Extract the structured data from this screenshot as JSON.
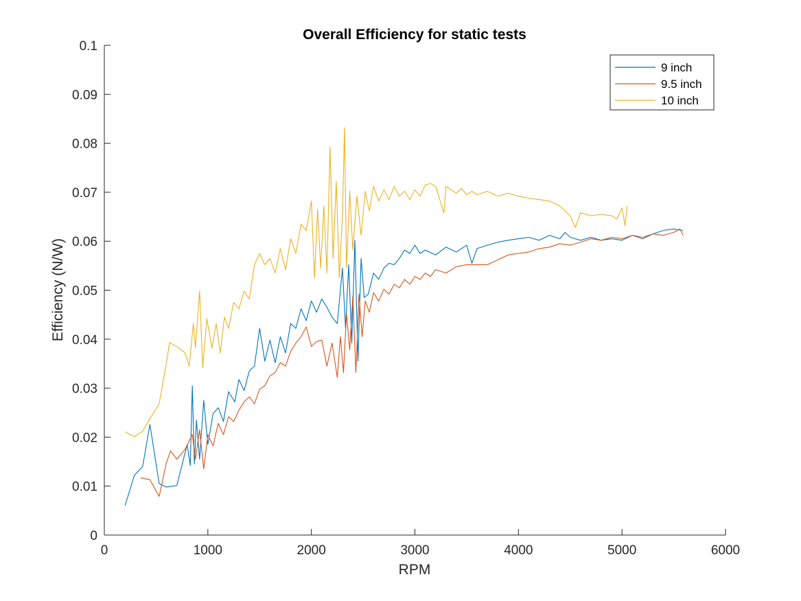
{
  "chart_data": {
    "type": "line",
    "title": "Overall Efficiency for static tests",
    "xlabel": "RPM",
    "ylabel": "Efficiency (N/W)",
    "xlim": [
      0,
      6000
    ],
    "ylim": [
      0,
      0.1
    ],
    "x_ticks": [
      "0",
      "1000",
      "2000",
      "3000",
      "4000",
      "5000",
      "6000"
    ],
    "y_ticks": [
      "0",
      "0.01",
      "0.02",
      "0.03",
      "0.04",
      "0.05",
      "0.06",
      "0.07",
      "0.08",
      "0.09",
      "0.1"
    ],
    "grid": false,
    "legend_position": "top-right",
    "series": [
      {
        "name": "9 inch",
        "color": "#0072BD",
        "points": [
          [
            200,
            0.006
          ],
          [
            290,
            0.0122
          ],
          [
            370,
            0.014
          ],
          [
            440,
            0.0226
          ],
          [
            530,
            0.0105
          ],
          [
            600,
            0.0098
          ],
          [
            700,
            0.0101
          ],
          [
            800,
            0.0185
          ],
          [
            830,
            0.0142
          ],
          [
            850,
            0.0305
          ],
          [
            870,
            0.0145
          ],
          [
            890,
            0.0235
          ],
          [
            920,
            0.0155
          ],
          [
            960,
            0.0275
          ],
          [
            1000,
            0.0185
          ],
          [
            1050,
            0.0248
          ],
          [
            1100,
            0.026
          ],
          [
            1150,
            0.0232
          ],
          [
            1200,
            0.0293
          ],
          [
            1260,
            0.0272
          ],
          [
            1300,
            0.0318
          ],
          [
            1350,
            0.0295
          ],
          [
            1400,
            0.0335
          ],
          [
            1450,
            0.0345
          ],
          [
            1500,
            0.0422
          ],
          [
            1550,
            0.0355
          ],
          [
            1600,
            0.0398
          ],
          [
            1650,
            0.0352
          ],
          [
            1700,
            0.0405
          ],
          [
            1750,
            0.0372
          ],
          [
            1800,
            0.0432
          ],
          [
            1850,
            0.0422
          ],
          [
            1900,
            0.0462
          ],
          [
            1950,
            0.0438
          ],
          [
            2000,
            0.0478
          ],
          [
            2050,
            0.0455
          ],
          [
            2100,
            0.0482
          ],
          [
            2150,
            0.0465
          ],
          [
            2200,
            0.0445
          ],
          [
            2250,
            0.0432
          ],
          [
            2300,
            0.0545
          ],
          [
            2330,
            0.0422
          ],
          [
            2360,
            0.0552
          ],
          [
            2390,
            0.0392
          ],
          [
            2420,
            0.0602
          ],
          [
            2450,
            0.0355
          ],
          [
            2480,
            0.0565
          ],
          [
            2510,
            0.0485
          ],
          [
            2550,
            0.0492
          ],
          [
            2600,
            0.0535
          ],
          [
            2650,
            0.0522
          ],
          [
            2700,
            0.0545
          ],
          [
            2750,
            0.0555
          ],
          [
            2800,
            0.0552
          ],
          [
            2850,
            0.0565
          ],
          [
            2900,
            0.0582
          ],
          [
            2950,
            0.0575
          ],
          [
            3000,
            0.0592
          ],
          [
            3050,
            0.0575
          ],
          [
            3100,
            0.0582
          ],
          [
            3200,
            0.0572
          ],
          [
            3300,
            0.0588
          ],
          [
            3400,
            0.0578
          ],
          [
            3500,
            0.0592
          ],
          [
            3550,
            0.0555
          ],
          [
            3600,
            0.0585
          ],
          [
            3700,
            0.0592
          ],
          [
            3800,
            0.0598
          ],
          [
            3900,
            0.0602
          ],
          [
            4000,
            0.0605
          ],
          [
            4100,
            0.0608
          ],
          [
            4200,
            0.0602
          ],
          [
            4300,
            0.0612
          ],
          [
            4400,
            0.0605
          ],
          [
            4450,
            0.0618
          ],
          [
            4500,
            0.0608
          ],
          [
            4600,
            0.0602
          ],
          [
            4700,
            0.0608
          ],
          [
            4800,
            0.0602
          ],
          [
            4900,
            0.0605
          ],
          [
            5000,
            0.0602
          ],
          [
            5100,
            0.0612
          ],
          [
            5200,
            0.0605
          ],
          [
            5300,
            0.0615
          ],
          [
            5400,
            0.0622
          ],
          [
            5500,
            0.0625
          ],
          [
            5590,
            0.0622
          ]
        ]
      },
      {
        "name": "9.5 inch",
        "color": "#D95319",
        "points": [
          [
            350,
            0.0117
          ],
          [
            440,
            0.0113
          ],
          [
            530,
            0.0079
          ],
          [
            600,
            0.0148
          ],
          [
            640,
            0.0172
          ],
          [
            700,
            0.0155
          ],
          [
            780,
            0.0175
          ],
          [
            850,
            0.0205
          ],
          [
            880,
            0.0155
          ],
          [
            920,
            0.0215
          ],
          [
            960,
            0.0135
          ],
          [
            1000,
            0.0205
          ],
          [
            1050,
            0.0182
          ],
          [
            1100,
            0.0228
          ],
          [
            1150,
            0.0205
          ],
          [
            1200,
            0.0242
          ],
          [
            1250,
            0.0232
          ],
          [
            1300,
            0.0255
          ],
          [
            1350,
            0.0272
          ],
          [
            1400,
            0.0282
          ],
          [
            1450,
            0.0268
          ],
          [
            1500,
            0.0298
          ],
          [
            1550,
            0.0305
          ],
          [
            1600,
            0.0325
          ],
          [
            1650,
            0.0332
          ],
          [
            1700,
            0.0352
          ],
          [
            1750,
            0.0345
          ],
          [
            1800,
            0.0375
          ],
          [
            1850,
            0.0392
          ],
          [
            1900,
            0.0405
          ],
          [
            1950,
            0.0425
          ],
          [
            2000,
            0.0385
          ],
          [
            2050,
            0.0395
          ],
          [
            2100,
            0.0398
          ],
          [
            2150,
            0.0345
          ],
          [
            2200,
            0.0392
          ],
          [
            2250,
            0.0322
          ],
          [
            2280,
            0.0405
          ],
          [
            2310,
            0.0332
          ],
          [
            2340,
            0.0452
          ],
          [
            2370,
            0.0378
          ],
          [
            2400,
            0.0488
          ],
          [
            2430,
            0.0332
          ],
          [
            2460,
            0.0492
          ],
          [
            2490,
            0.0405
          ],
          [
            2520,
            0.0478
          ],
          [
            2560,
            0.0455
          ],
          [
            2600,
            0.0495
          ],
          [
            2650,
            0.0478
          ],
          [
            2700,
            0.0502
          ],
          [
            2750,
            0.0492
          ],
          [
            2800,
            0.0512
          ],
          [
            2850,
            0.0505
          ],
          [
            2900,
            0.0522
          ],
          [
            2950,
            0.0512
          ],
          [
            3000,
            0.0528
          ],
          [
            3050,
            0.0522
          ],
          [
            3100,
            0.0535
          ],
          [
            3150,
            0.0528
          ],
          [
            3200,
            0.0542
          ],
          [
            3300,
            0.0535
          ],
          [
            3400,
            0.0548
          ],
          [
            3500,
            0.0552
          ],
          [
            3600,
            0.0552
          ],
          [
            3700,
            0.0552
          ],
          [
            3800,
            0.0562
          ],
          [
            3900,
            0.0572
          ],
          [
            4000,
            0.0575
          ],
          [
            4100,
            0.0578
          ],
          [
            4200,
            0.0585
          ],
          [
            4300,
            0.0588
          ],
          [
            4400,
            0.0595
          ],
          [
            4500,
            0.0592
          ],
          [
            4600,
            0.0598
          ],
          [
            4700,
            0.0605
          ],
          [
            4800,
            0.0602
          ],
          [
            4900,
            0.0608
          ],
          [
            5000,
            0.0605
          ],
          [
            5100,
            0.0612
          ],
          [
            5200,
            0.0608
          ],
          [
            5300,
            0.0615
          ],
          [
            5400,
            0.0612
          ],
          [
            5500,
            0.0618
          ],
          [
            5560,
            0.0625
          ],
          [
            5590,
            0.0612
          ]
        ]
      },
      {
        "name": "10 inch",
        "color": "#EDB120",
        "points": [
          [
            200,
            0.0211
          ],
          [
            290,
            0.0201
          ],
          [
            370,
            0.0212
          ],
          [
            440,
            0.0238
          ],
          [
            530,
            0.0268
          ],
          [
            600,
            0.0352
          ],
          [
            630,
            0.0393
          ],
          [
            700,
            0.0385
          ],
          [
            780,
            0.0372
          ],
          [
            820,
            0.0345
          ],
          [
            860,
            0.0432
          ],
          [
            880,
            0.0382
          ],
          [
            920,
            0.0498
          ],
          [
            950,
            0.0342
          ],
          [
            990,
            0.0442
          ],
          [
            1040,
            0.0382
          ],
          [
            1080,
            0.0432
          ],
          [
            1120,
            0.0372
          ],
          [
            1160,
            0.0445
          ],
          [
            1200,
            0.0422
          ],
          [
            1250,
            0.0475
          ],
          [
            1300,
            0.0462
          ],
          [
            1350,
            0.0498
          ],
          [
            1400,
            0.0482
          ],
          [
            1450,
            0.0552
          ],
          [
            1500,
            0.0575
          ],
          [
            1550,
            0.0552
          ],
          [
            1600,
            0.0565
          ],
          [
            1650,
            0.0535
          ],
          [
            1700,
            0.0585
          ],
          [
            1750,
            0.0542
          ],
          [
            1800,
            0.0605
          ],
          [
            1850,
            0.0575
          ],
          [
            1900,
            0.0635
          ],
          [
            1950,
            0.0622
          ],
          [
            2000,
            0.0682
          ],
          [
            2030,
            0.0525
          ],
          [
            2060,
            0.0665
          ],
          [
            2090,
            0.0545
          ],
          [
            2120,
            0.0672
          ],
          [
            2150,
            0.0535
          ],
          [
            2180,
            0.0792
          ],
          [
            2210,
            0.0565
          ],
          [
            2240,
            0.0722
          ],
          [
            2270,
            0.0525
          ],
          [
            2300,
            0.0652
          ],
          [
            2320,
            0.0832
          ],
          [
            2340,
            0.0545
          ],
          [
            2370,
            0.0702
          ],
          [
            2400,
            0.0582
          ],
          [
            2440,
            0.0692
          ],
          [
            2480,
            0.0612
          ],
          [
            2520,
            0.0702
          ],
          [
            2560,
            0.0662
          ],
          [
            2600,
            0.0712
          ],
          [
            2650,
            0.0682
          ],
          [
            2700,
            0.0705
          ],
          [
            2750,
            0.0685
          ],
          [
            2800,
            0.0712
          ],
          [
            2850,
            0.0692
          ],
          [
            2900,
            0.0702
          ],
          [
            2950,
            0.0685
          ],
          [
            3000,
            0.0705
          ],
          [
            3050,
            0.0692
          ],
          [
            3100,
            0.0715
          ],
          [
            3150,
            0.0718
          ],
          [
            3200,
            0.0712
          ],
          [
            3280,
            0.0658
          ],
          [
            3300,
            0.0712
          ],
          [
            3350,
            0.0705
          ],
          [
            3400,
            0.0698
          ],
          [
            3450,
            0.0708
          ],
          [
            3500,
            0.0695
          ],
          [
            3550,
            0.0702
          ],
          [
            3600,
            0.0695
          ],
          [
            3700,
            0.0702
          ],
          [
            3800,
            0.0692
          ],
          [
            3900,
            0.0698
          ],
          [
            4000,
            0.0692
          ],
          [
            4100,
            0.0688
          ],
          [
            4200,
            0.0685
          ],
          [
            4300,
            0.0682
          ],
          [
            4400,
            0.0672
          ],
          [
            4450,
            0.0662
          ],
          [
            4500,
            0.0652
          ],
          [
            4550,
            0.0628
          ],
          [
            4600,
            0.0658
          ],
          [
            4700,
            0.0652
          ],
          [
            4800,
            0.0655
          ],
          [
            4900,
            0.0652
          ],
          [
            4950,
            0.0645
          ],
          [
            5000,
            0.0668
          ],
          [
            5030,
            0.0632
          ],
          [
            5050,
            0.0672
          ]
        ]
      }
    ]
  }
}
